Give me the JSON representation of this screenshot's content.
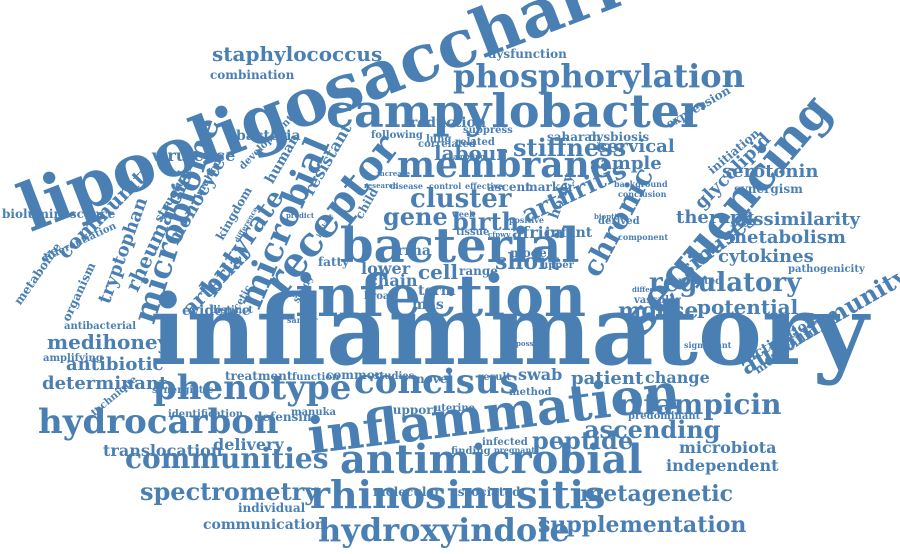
{
  "accent_color": "#4a7fb3",
  "words": [
    {
      "text": "inflammatory"
    },
    {
      "text": "lipooligosaccharide"
    },
    {
      "text": "infection"
    },
    {
      "text": "inflammation"
    },
    {
      "text": "bacterial"
    },
    {
      "text": "campylobacter"
    },
    {
      "text": "antimicrobial"
    },
    {
      "text": "sequencing"
    },
    {
      "text": "rhinosinusitis"
    },
    {
      "text": "receptor"
    },
    {
      "text": "membrane"
    },
    {
      "text": "phosphorylation"
    },
    {
      "text": "microbial"
    },
    {
      "text": "microbiome"
    },
    {
      "text": "phenotype"
    },
    {
      "text": "concisus"
    },
    {
      "text": "hydrocarbon"
    },
    {
      "text": "communities"
    },
    {
      "text": "hydroxyindole"
    },
    {
      "text": "chronic"
    },
    {
      "text": "rifampicin"
    },
    {
      "text": "regulatory"
    },
    {
      "text": "arthritis"
    },
    {
      "text": "spectrometry"
    },
    {
      "text": "ascending"
    },
    {
      "text": "autoimmunity"
    },
    {
      "text": "staphylococcus"
    },
    {
      "text": "butyrate"
    },
    {
      "text": "cluster"
    },
    {
      "text": "stiffness"
    },
    {
      "text": "metagenetic"
    },
    {
      "text": "supplementation"
    },
    {
      "text": "peptide"
    },
    {
      "text": "potential"
    },
    {
      "text": "rheumatoid"
    },
    {
      "text": "metabolism"
    },
    {
      "text": "mouse"
    },
    {
      "text": "cytokines"
    },
    {
      "text": "serotonin"
    },
    {
      "text": "glycolipid"
    },
    {
      "text": "sinuses"
    },
    {
      "text": "therapy"
    },
    {
      "text": "dissimilarity"
    },
    {
      "text": "patient"
    },
    {
      "text": "change"
    },
    {
      "text": "gene"
    },
    {
      "text": "birth"
    },
    {
      "text": "short"
    },
    {
      "text": "cell"
    },
    {
      "text": "sample"
    },
    {
      "text": "labour"
    },
    {
      "text": "cervical"
    },
    {
      "text": "medihoney"
    },
    {
      "text": "antibiotic"
    },
    {
      "text": "determinant"
    },
    {
      "text": "arterial"
    },
    {
      "text": "community"
    },
    {
      "text": "virulence"
    },
    {
      "text": "monocyte"
    },
    {
      "text": "tryptophan"
    },
    {
      "text": "resistant"
    },
    {
      "text": "delivery"
    },
    {
      "text": "translocation"
    },
    {
      "text": "communication"
    },
    {
      "text": "independent"
    },
    {
      "text": "microbiota"
    },
    {
      "text": "swab"
    },
    {
      "text": "molecular"
    },
    {
      "text": "associated"
    },
    {
      "text": "individual"
    },
    {
      "text": "bacteria"
    },
    {
      "text": "combination"
    },
    {
      "text": "reduction"
    },
    {
      "text": "dysfunction"
    },
    {
      "text": "evidence"
    },
    {
      "text": "saharan"
    },
    {
      "text": "dysbiosis"
    },
    {
      "text": "activation"
    },
    {
      "text": "methicillin"
    },
    {
      "text": "defensin"
    },
    {
      "text": "support"
    },
    {
      "text": "finding"
    },
    {
      "text": "vascular"
    },
    {
      "text": "predominant"
    },
    {
      "text": "initiation"
    },
    {
      "text": "synergism"
    },
    {
      "text": "pathogenicity"
    },
    {
      "text": "ventilated"
    },
    {
      "text": "expression"
    },
    {
      "text": "bioluminescence"
    },
    {
      "text": "differentiation"
    },
    {
      "text": "metabolite"
    },
    {
      "text": "organism"
    },
    {
      "text": "antibacterial"
    },
    {
      "text": "amplifying"
    },
    {
      "text": "technique"
    },
    {
      "text": "synergistic"
    },
    {
      "text": "treatment"
    },
    {
      "text": "function"
    },
    {
      "text": "common"
    },
    {
      "text": "studies"
    },
    {
      "text": "novel"
    },
    {
      "text": "result"
    },
    {
      "text": "method"
    },
    {
      "text": "identification"
    },
    {
      "text": "manuka"
    },
    {
      "text": "uterine"
    },
    {
      "text": "infected"
    },
    {
      "text": "pregnant"
    },
    {
      "text": "africa"
    },
    {
      "text": "infant"
    },
    {
      "text": "rrna"
    },
    {
      "text": "lower"
    },
    {
      "text": "chain"
    },
    {
      "text": "broad"
    },
    {
      "text": "range"
    },
    {
      "text": "mas"
    },
    {
      "text": "term"
    },
    {
      "text": "lung"
    },
    {
      "text": "tissue"
    },
    {
      "text": "upper"
    },
    {
      "text": "honey"
    },
    {
      "text": "model"
    },
    {
      "text": "ascent"
    },
    {
      "text": "marker"
    },
    {
      "text": "following"
    },
    {
      "text": "correlated"
    },
    {
      "text": "related"
    },
    {
      "text": "suppress"
    },
    {
      "text": "human"
    },
    {
      "text": "kingdom"
    },
    {
      "text": "structure"
    },
    {
      "text": "distinct"
    },
    {
      "text": "acetic"
    },
    {
      "text": "fatty"
    },
    {
      "text": "development"
    },
    {
      "text": "multiple"
    },
    {
      "text": "child"
    },
    {
      "text": "derived"
    },
    {
      "text": "component"
    },
    {
      "text": "background"
    },
    {
      "text": "conclusion"
    },
    {
      "text": "significant"
    },
    {
      "text": "positive"
    },
    {
      "text": "week"
    },
    {
      "text": "control"
    },
    {
      "text": "effective"
    },
    {
      "text": "research"
    },
    {
      "text": "disease"
    },
    {
      "text": "sampling"
    },
    {
      "text": "increase"
    },
    {
      "text": "predict"
    },
    {
      "text": "clinical"
    },
    {
      "text": "study"
    },
    {
      "text": "sanger"
    },
    {
      "text": "different"
    },
    {
      "text": "possible"
    },
    {
      "text": "isolate"
    },
    {
      "text": "difference"
    },
    {
      "text": "cfpwv"
    },
    {
      "text": "bioptics"
    }
  ]
}
